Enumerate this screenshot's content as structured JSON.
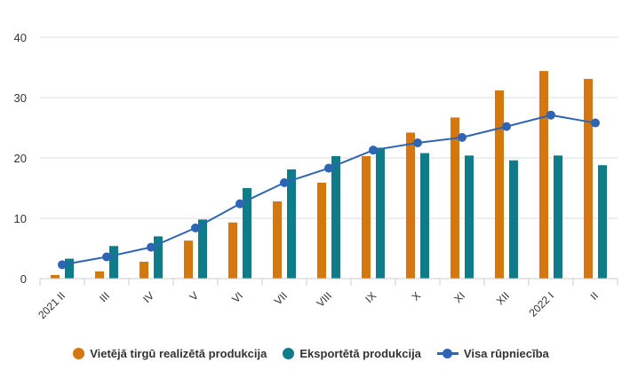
{
  "chart_data": {
    "type": "bar",
    "categories": [
      "2021 II",
      "III",
      "IV",
      "V",
      "VI",
      "VII",
      "VIII",
      "IX",
      "X",
      "XI",
      "XII",
      "2022 I",
      "II"
    ],
    "series": [
      {
        "name": "Vietējā tirgū realizētā produkcija",
        "kind": "bar",
        "color": "#d4770f",
        "values": [
          0.6,
          1.2,
          2.8,
          6.3,
          9.3,
          12.8,
          15.9,
          20.3,
          24.2,
          26.7,
          31.2,
          34.4,
          33.1
        ]
      },
      {
        "name": "Eksportētā produkcija",
        "kind": "bar",
        "color": "#0e7c89",
        "values": [
          3.3,
          5.4,
          7.0,
          9.8,
          15.0,
          18.1,
          20.3,
          21.7,
          20.8,
          20.4,
          19.6,
          20.4,
          18.8
        ]
      },
      {
        "name": "Visa rūpniecība",
        "kind": "line",
        "color": "#2e64b4",
        "values": [
          2.3,
          3.6,
          5.2,
          8.4,
          12.4,
          15.9,
          18.3,
          21.3,
          22.5,
          23.4,
          25.2,
          27.1,
          25.8
        ]
      }
    ],
    "yticks": [
      0,
      10,
      20,
      30,
      40
    ],
    "ylim": [
      0,
      40
    ],
    "grid": true,
    "legend": "bottom"
  }
}
